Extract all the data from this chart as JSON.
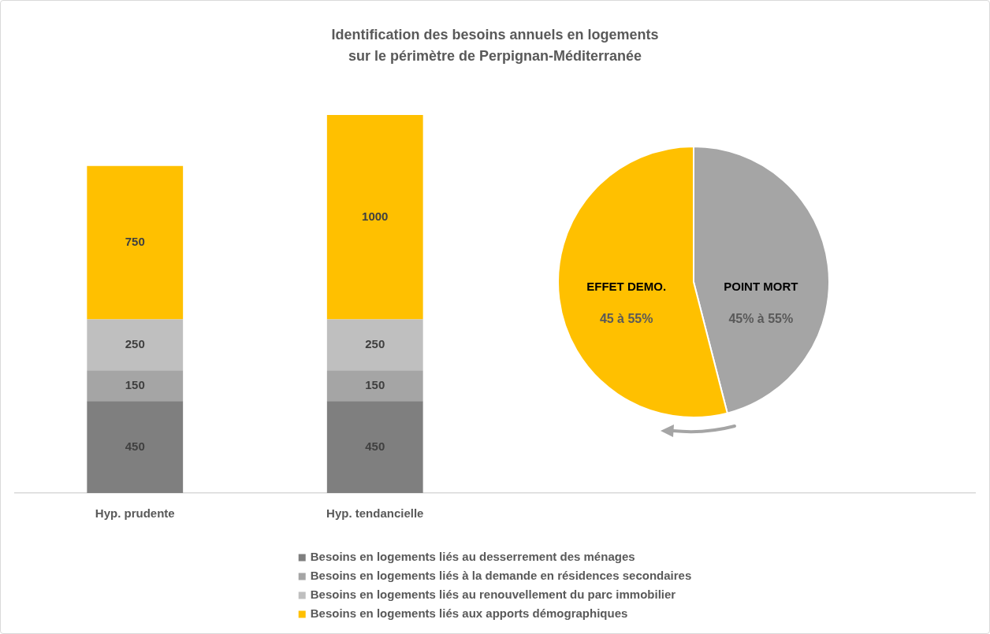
{
  "chart_data": [
    {
      "type": "bar",
      "title": "Identification des besoins annuels en logements\nsur le périmètre de Perpignan-Méditerranée",
      "categories": [
        "Hyp. prudente",
        "Hyp. tendancielle",
        null,
        null
      ],
      "stacked": true,
      "series": [
        {
          "name": "Besoins en logements liés au desserrement des ménages",
          "color": "#7f7f7f",
          "values": [
            450,
            450,
            null,
            null
          ]
        },
        {
          "name": "Besoins en logements liés à la demande en résidences secondaires",
          "color": "#a5a5a5",
          "values": [
            150,
            150,
            null,
            null
          ]
        },
        {
          "name": "Besoins en logements liés au renouvellement du parc immobilier",
          "color": "#bfbfbf",
          "values": [
            250,
            250,
            null,
            null
          ]
        },
        {
          "name": "Besoins en logements liés aux apports démographiques",
          "color": "#ffc000",
          "values": [
            750,
            1000,
            null,
            null
          ]
        }
      ],
      "ylim": [
        0,
        1850
      ],
      "tick_labels": "x",
      "data_labels": true,
      "legend": "bottom"
    },
    {
      "type": "pie",
      "categories": [
        "POINT MORT",
        "EFFET DEMO."
      ],
      "values": [
        46,
        54
      ],
      "colors": [
        "#a5a5a5",
        "#ffc000"
      ],
      "annotations": [
        "45% à 55%",
        "45 à 55%"
      ]
    }
  ]
}
